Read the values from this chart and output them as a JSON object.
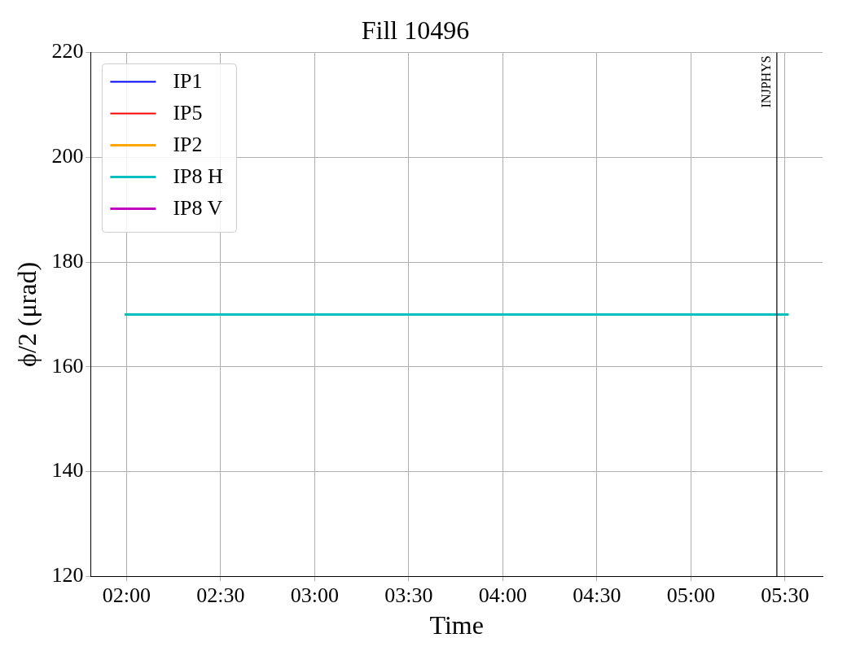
{
  "chart_data": {
    "type": "line",
    "title": "Fill 10496",
    "xlabel": "Time",
    "ylabel": "ϕ/2 (μrad)",
    "xlim": [
      1.81,
      5.7
    ],
    "ylim": [
      120,
      220
    ],
    "xticks": [
      {
        "value": 2,
        "label": "02:00"
      },
      {
        "value": 2.5,
        "label": "02:30"
      },
      {
        "value": 3,
        "label": "03:00"
      },
      {
        "value": 3.5,
        "label": "03:30"
      },
      {
        "value": 4,
        "label": "04:00"
      },
      {
        "value": 4.5,
        "label": "04:30"
      },
      {
        "value": 5,
        "label": "05:00"
      },
      {
        "value": 5.5,
        "label": "05:30"
      }
    ],
    "yticks": [
      120,
      140,
      160,
      180,
      200,
      220
    ],
    "grid": true,
    "legend": "top left",
    "marker": "none",
    "line_style": "solid",
    "series": [
      {
        "name": "IP1",
        "color": "#0000ff"
      },
      {
        "name": "IP5",
        "color": "#ff0000"
      },
      {
        "name": "IP2",
        "color": "#ffa500"
      },
      {
        "name": "IP8 H",
        "color": "#00bfbf",
        "x": [
          1.99,
          5.52
        ],
        "values": [
          170,
          170
        ]
      },
      {
        "name": "IP8 V",
        "color": "#bf00bf"
      }
    ],
    "ref_lines": [
      {
        "axis": "x",
        "value": 5.457,
        "label": "INJPHYS",
        "color": "#000000"
      }
    ]
  }
}
